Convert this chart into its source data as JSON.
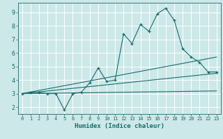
{
  "title": "",
  "xlabel": "Humidex (Indice chaleur)",
  "background_color": "#cce8e8",
  "line_color": "#1a6b6b",
  "grid_color": "#ffffff",
  "xlim": [
    -0.5,
    23.5
  ],
  "ylim": [
    1.5,
    9.7
  ],
  "xticks": [
    0,
    1,
    2,
    3,
    4,
    5,
    6,
    7,
    8,
    9,
    10,
    11,
    12,
    13,
    14,
    15,
    16,
    17,
    18,
    19,
    20,
    21,
    22,
    23
  ],
  "yticks": [
    2,
    3,
    4,
    5,
    6,
    7,
    8,
    9
  ],
  "line1_x": [
    0,
    1,
    2,
    3,
    4,
    5,
    6,
    7,
    8,
    9,
    10,
    11,
    12,
    13,
    14,
    15,
    16,
    17,
    18,
    19,
    20,
    21,
    22,
    23
  ],
  "line1_y": [
    3.0,
    3.1,
    3.1,
    3.0,
    3.0,
    1.8,
    3.0,
    3.1,
    3.8,
    4.9,
    3.9,
    4.0,
    7.4,
    6.7,
    8.1,
    7.6,
    8.9,
    9.3,
    8.4,
    6.3,
    5.7,
    5.3,
    4.6,
    4.6
  ],
  "line2_x": [
    0,
    23
  ],
  "line2_y": [
    3.0,
    3.2
  ],
  "line3_x": [
    0,
    23
  ],
  "line3_y": [
    3.0,
    5.7
  ],
  "line4_x": [
    0,
    23
  ],
  "line4_y": [
    3.0,
    4.5
  ]
}
